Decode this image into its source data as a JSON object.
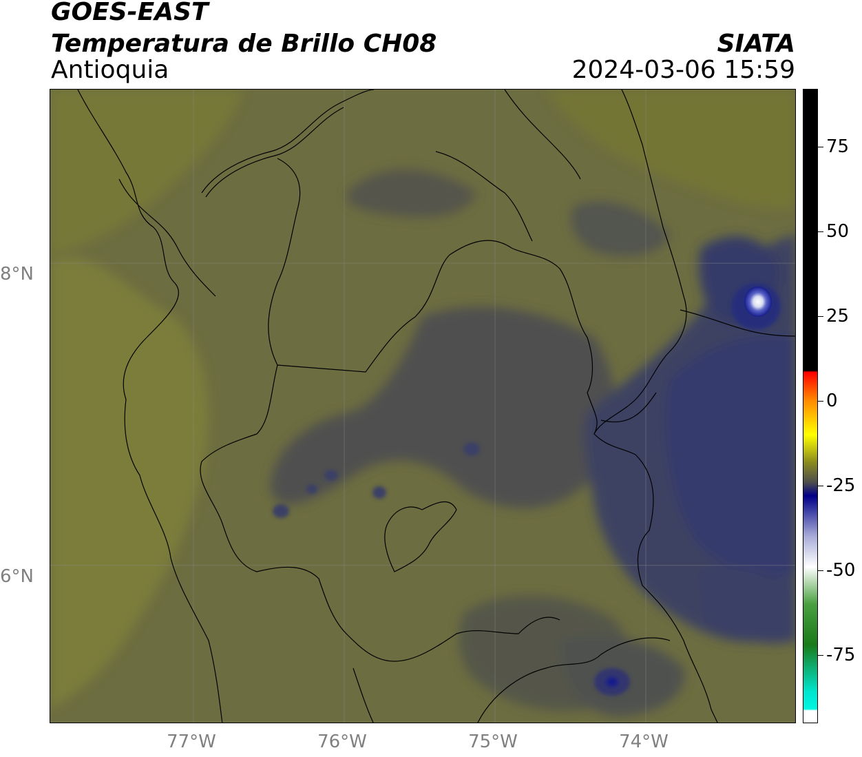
{
  "header": {
    "satellite": "GOES-EAST",
    "product": "Temperatura de Brillo CH08",
    "region": "Antioquia",
    "organization": "SIATA",
    "timestamp": "2024-03-06 15:59"
  },
  "map": {
    "lon_range": [
      -77.95,
      -73.0
    ],
    "lat_range": [
      4.95,
      9.15
    ],
    "lat_ticks": [
      {
        "value": 8,
        "label": "8°N"
      },
      {
        "value": 6,
        "label": "6°N"
      }
    ],
    "lon_ticks": [
      {
        "value": -77,
        "label": "77°W"
      },
      {
        "value": -76,
        "label": "76°W"
      },
      {
        "value": -75,
        "label": "75°W"
      },
      {
        "value": -74,
        "label": "74°W"
      }
    ],
    "colors": {
      "olive_light": "#7b7d3a",
      "olive": "#6f7040",
      "olive_dark": "#606045",
      "gray_dark": "#4e4f4f",
      "navy_gray": "#3e4262",
      "navy": "#2c3270",
      "deep_blue": "#151c8a",
      "white_core": "#f2f2f2"
    }
  },
  "colorbar": {
    "min": -95,
    "max": 92,
    "ticks": [
      {
        "value": 75,
        "label": "75"
      },
      {
        "value": 50,
        "label": "50"
      },
      {
        "value": 25,
        "label": "25"
      },
      {
        "value": 0,
        "label": "0"
      },
      {
        "value": -25,
        "label": "-25"
      },
      {
        "value": -50,
        "label": "-50"
      },
      {
        "value": -75,
        "label": "-75"
      }
    ],
    "stops": [
      {
        "value": 92,
        "color": "#000000"
      },
      {
        "value": 9,
        "color": "#000000"
      },
      {
        "value": 8.5,
        "color": "#ff0000"
      },
      {
        "value": 0,
        "color": "#ff8c00"
      },
      {
        "value": -10,
        "color": "#ffff00"
      },
      {
        "value": -18,
        "color": "#8c8c1e"
      },
      {
        "value": -24,
        "color": "#4e4e4e"
      },
      {
        "value": -28,
        "color": "#000088"
      },
      {
        "value": -40,
        "color": "#a8acd8"
      },
      {
        "value": -49,
        "color": "#ffffff"
      },
      {
        "value": -60,
        "color": "#4aa040"
      },
      {
        "value": -72,
        "color": "#1a7a1a"
      },
      {
        "value": -86,
        "color": "#00e6d0"
      },
      {
        "value": -91,
        "color": "#00f5e0"
      },
      {
        "value": -91.5,
        "color": "#ffffff"
      },
      {
        "value": -95,
        "color": "#ffffff"
      }
    ]
  }
}
